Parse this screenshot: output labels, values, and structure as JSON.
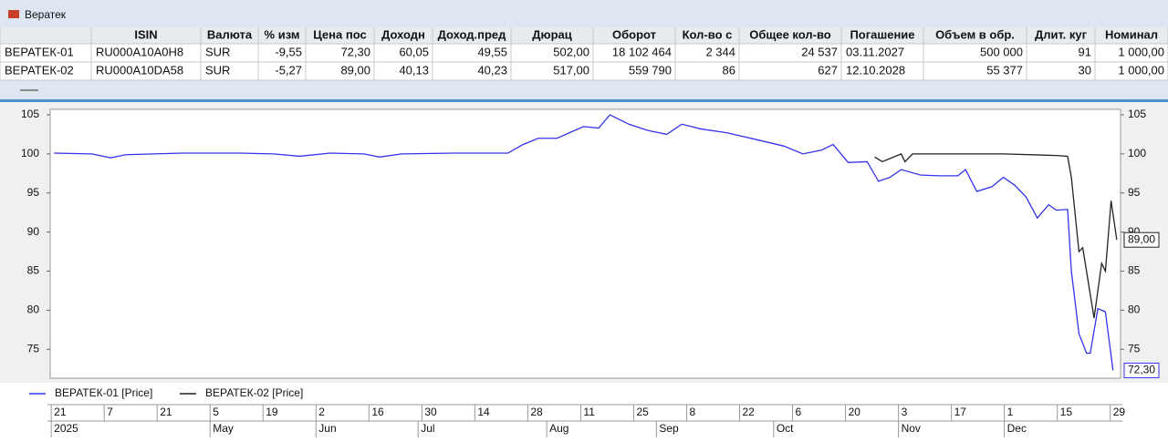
{
  "window": {
    "title": "Вератек"
  },
  "table": {
    "headers": [
      "ISIN",
      "Валюта",
      "% изм",
      "Цена пос",
      "Доходн",
      "Доход.пред",
      "Дюрац",
      "Оборот",
      "Кол-во с",
      "Общее кол-во",
      "Погашение",
      "Объем в обр.",
      "Длит. куг",
      "Номинал"
    ],
    "rows": [
      [
        "ВЕРАТЕК-01",
        "RU000A10A0H8",
        "SUR",
        "-9,55",
        "72,30",
        "60,05",
        "49,55",
        "502,00",
        "18 102 464",
        "2 344",
        "24 537",
        "03.11.2027",
        "500 000",
        "91",
        "1 000,00"
      ],
      [
        "ВЕРАТЕК-02",
        "RU000A10DA58",
        "SUR",
        "-5,27",
        "89,00",
        "40,13",
        "40,23",
        "517,00",
        "559 790",
        "86",
        "627",
        "12.10.2028",
        "55 377",
        "30",
        "1 000,00"
      ]
    ]
  },
  "chart_data": {
    "type": "line",
    "xlim": [
      -1,
      282
    ],
    "ylim": [
      71.3,
      105.7
    ],
    "yticks": [
      75,
      80,
      85,
      90,
      95,
      100,
      105
    ],
    "xticks": [
      {
        "value": 0,
        "label": "21"
      },
      {
        "value": 14,
        "label": "7"
      },
      {
        "value": 28,
        "label": "21"
      },
      {
        "value": 42,
        "label": "5"
      },
      {
        "value": 56,
        "label": "19"
      },
      {
        "value": 70,
        "label": "2"
      },
      {
        "value": 84,
        "label": "16"
      },
      {
        "value": 98,
        "label": "30"
      },
      {
        "value": 112,
        "label": "14"
      },
      {
        "value": 126,
        "label": "28"
      },
      {
        "value": 140,
        "label": "11"
      },
      {
        "value": 154,
        "label": "25"
      },
      {
        "value": 168,
        "label": "8"
      },
      {
        "value": 182,
        "label": "22"
      },
      {
        "value": 196,
        "label": "6"
      },
      {
        "value": 210,
        "label": "20"
      },
      {
        "value": 224,
        "label": "3"
      },
      {
        "value": 238,
        "label": "17"
      },
      {
        "value": 252,
        "label": "1"
      },
      {
        "value": 266,
        "label": "15"
      },
      {
        "value": 280,
        "label": "29"
      }
    ],
    "month_ticks": [
      {
        "value": 0,
        "label": "2025"
      },
      {
        "value": 42,
        "label": "May"
      },
      {
        "value": 70,
        "label": "Jun"
      },
      {
        "value": 97,
        "label": "Jul"
      },
      {
        "value": 131,
        "label": "Aug"
      },
      {
        "value": 160,
        "label": "Sep"
      },
      {
        "value": 191,
        "label": "Oct"
      },
      {
        "value": 224,
        "label": "Nov"
      },
      {
        "value": 252,
        "label": "Dec"
      }
    ],
    "series": [
      {
        "name": "ВЕРАТЕК-01 [Price]",
        "color": "#3434ee",
        "last_value_label": "72,30",
        "x": [
          0,
          10,
          15,
          19,
          34,
          49,
          58,
          65,
          73,
          82,
          86,
          92,
          106,
          120,
          124,
          128,
          133,
          140,
          144,
          147,
          152,
          157,
          162,
          166,
          171,
          178,
          186,
          193,
          198,
          203,
          206,
          210,
          215,
          218,
          221,
          224,
          229,
          234,
          239,
          241,
          244,
          248,
          251,
          254,
          257,
          260,
          263,
          265,
          268,
          269,
          271,
          273,
          274,
          276,
          278,
          280
        ],
        "values": [
          100.1,
          100.0,
          99.5,
          99.9,
          100.1,
          100.1,
          100.0,
          99.7,
          100.1,
          100.0,
          99.6,
          100.0,
          100.1,
          100.1,
          101.2,
          102.0,
          102.0,
          103.5,
          103.3,
          105.0,
          103.8,
          103.0,
          102.5,
          103.8,
          103.2,
          102.7,
          101.8,
          101.0,
          100.0,
          100.5,
          101.2,
          98.9,
          99.0,
          96.5,
          97.0,
          98.0,
          97.3,
          97.2,
          97.2,
          98.0,
          95.2,
          95.8,
          97.0,
          96.0,
          94.5,
          91.8,
          93.5,
          92.8,
          92.9,
          85.0,
          77.0,
          74.5,
          74.5,
          80.2,
          79.8,
          72.3
        ]
      },
      {
        "name": "ВЕРАТЕК-02 [Price]",
        "color": "#222222",
        "last_value_label": "89,00",
        "x": [
          217,
          219,
          224,
          225,
          227,
          251,
          265,
          268,
          269,
          271,
          272,
          275,
          277,
          278,
          279.5,
          281
        ],
        "values": [
          99.6,
          99.0,
          100.0,
          99.0,
          100.0,
          100.0,
          99.8,
          99.7,
          97.0,
          87.5,
          88.0,
          79.0,
          86.0,
          85.0,
          94.0,
          89.0
        ]
      }
    ]
  }
}
